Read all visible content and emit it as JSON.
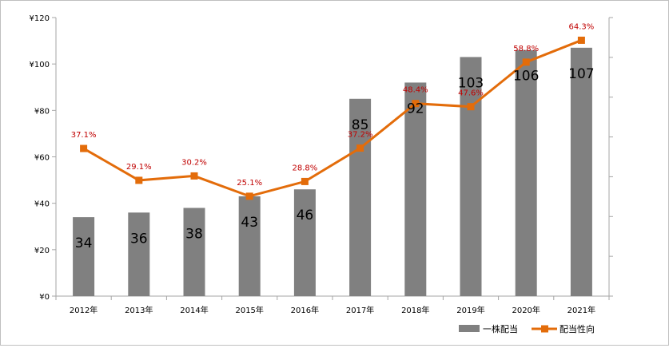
{
  "chart_data": {
    "type": "bar+line",
    "categories": [
      "2012年",
      "2013年",
      "2014年",
      "2015年",
      "2016年",
      "2017年",
      "2018年",
      "2019年",
      "2020年",
      "2021年"
    ],
    "y_left": {
      "ticks": [
        "¥0",
        "¥20",
        "¥40",
        "¥60",
        "¥80",
        "¥100",
        "¥120"
      ],
      "ylim": [
        0,
        120
      ]
    },
    "y_right": {
      "ylim": [
        0,
        70
      ],
      "tick_step": 10,
      "tick_labels_shown": false
    },
    "series": [
      {
        "name": "一株配当",
        "type": "bar",
        "axis": "left",
        "values": [
          34,
          36,
          38,
          43,
          46,
          85,
          92,
          103,
          106,
          107
        ],
        "labels": [
          "34",
          "36",
          "38",
          "43",
          "46",
          "85",
          "92",
          "103",
          "106",
          "107"
        ]
      },
      {
        "name": "配当性向",
        "type": "line",
        "axis": "right",
        "values": [
          37.1,
          29.1,
          30.2,
          25.1,
          28.8,
          37.2,
          48.4,
          47.6,
          58.8,
          64.3
        ],
        "labels": [
          "37.1%",
          "29.1%",
          "30.2%",
          "25.1%",
          "28.8%",
          "37.2%",
          "48.4%",
          "47.6%",
          "58.8%",
          "64.3%"
        ]
      }
    ],
    "legend_position": "bottom-right",
    "grid": false
  },
  "colors": {
    "bar": "#808080",
    "line": "#e36c0a",
    "line_label": "#c00000",
    "axis": "#a6a6a6",
    "text": "#000000"
  }
}
